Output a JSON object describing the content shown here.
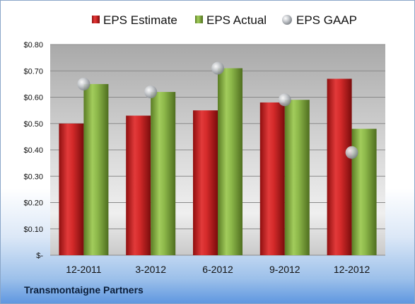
{
  "company_name": "Transmontaigne Partners",
  "colors": {
    "estimate": "#d42a2a",
    "actual": "#8db84a",
    "gaap": "#bfc3c8"
  },
  "chart_data": {
    "type": "bar",
    "categories": [
      "12-2011",
      "3-2012",
      "6-2012",
      "9-2012",
      "12-2012"
    ],
    "series": [
      {
        "name": "EPS Estimate",
        "type": "bar",
        "values": [
          0.5,
          0.53,
          0.55,
          0.58,
          0.67
        ]
      },
      {
        "name": "EPS Actual",
        "type": "bar",
        "values": [
          0.65,
          0.62,
          0.71,
          0.59,
          0.48
        ]
      },
      {
        "name": "EPS GAAP",
        "type": "scatter",
        "values": [
          0.65,
          0.62,
          0.71,
          0.59,
          0.39
        ]
      }
    ],
    "ylim": [
      0,
      0.8
    ],
    "y_ticks": [
      {
        "value": 0.8,
        "label": "$0.80"
      },
      {
        "value": 0.7,
        "label": "$0.70"
      },
      {
        "value": 0.6,
        "label": "$0.60"
      },
      {
        "value": 0.5,
        "label": "$0.50"
      },
      {
        "value": 0.4,
        "label": "$0.40"
      },
      {
        "value": 0.3,
        "label": "$0.30"
      },
      {
        "value": 0.2,
        "label": "$0.20"
      },
      {
        "value": 0.1,
        "label": "$0.10"
      },
      {
        "value": 0,
        "label": "$-"
      }
    ],
    "legend_position": "top",
    "grid": true
  }
}
